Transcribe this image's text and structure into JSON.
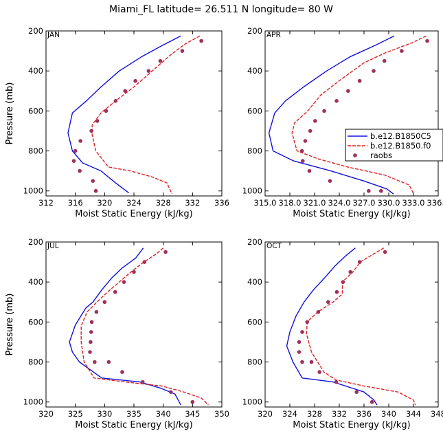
{
  "title": "Miami_FL   latitude= 26.511 N longitude= 80 W",
  "colors": {
    "model1": "#1010dd",
    "model2": "#dd2222",
    "raobs": "#a0305a",
    "axis": "#000000"
  },
  "legend": {
    "entries": [
      {
        "label": "b.e12.B1850C5",
        "style": "solid"
      },
      {
        "label": "b.e12.B1850.f0",
        "style": "dashed"
      },
      {
        "label": "raobs",
        "style": "dot"
      }
    ]
  },
  "chart_data": [
    {
      "type": "line",
      "panel": "JAN",
      "xlabel": "Moist Static Energy (kJ/kg)",
      "ylabel": "Pressure (mb)",
      "xlim": [
        312,
        336
      ],
      "ylim": [
        1025,
        200
      ],
      "xticks": [
        312,
        316,
        320,
        324,
        328,
        332,
        336
      ],
      "xtick_labels": [
        "312",
        "316",
        "320",
        "324",
        "328",
        "332",
        "336"
      ],
      "yticks": [
        200,
        400,
        600,
        800,
        1000
      ],
      "series": [
        {
          "name": "b.e12.B1850C5",
          "style": "solid",
          "x": [
            330.4,
            328.0,
            325.0,
            322.0,
            319.5,
            317.5,
            315.6,
            315.0,
            315.6,
            317.0,
            319.5,
            321.5,
            323.3
          ],
          "y": [
            225,
            270,
            330,
            400,
            480,
            550,
            610,
            710,
            800,
            860,
            900,
            960,
            1010
          ]
        },
        {
          "name": "b.e12.B1850.f0",
          "style": "dashed",
          "x": [
            333.0,
            331.0,
            329.0,
            326.5,
            324.0,
            321.5,
            319.5,
            318.3,
            318.3,
            318.8,
            320.5,
            323.5,
            326.5,
            328.5,
            329.2
          ],
          "y": [
            225,
            265,
            320,
            400,
            480,
            550,
            610,
            670,
            720,
            800,
            880,
            900,
            930,
            960,
            1015
          ]
        }
      ],
      "scatter": {
        "name": "raobs",
        "x": [
          333.2,
          330.6,
          327.6,
          326.0,
          324.2,
          322.8,
          321.5,
          320.2,
          319.0,
          318.2,
          316.7,
          316.0,
          315.8,
          316.6,
          318.4,
          318.8
        ],
        "y": [
          250,
          300,
          350,
          400,
          450,
          500,
          550,
          600,
          650,
          700,
          750,
          800,
          850,
          900,
          950,
          1000
        ]
      }
    },
    {
      "type": "line",
      "panel": "APR",
      "xlabel": "Moist Static Energy (kJ/kg)",
      "ylabel": "Pressure (mb)",
      "xlim": [
        315.03,
        336.03
      ],
      "ylim": [
        1025,
        200
      ],
      "xticks": [
        315.03,
        318.03,
        321.03,
        324.03,
        327.03,
        330.03,
        333.03,
        336.03
      ],
      "xtick_labels": [
        "315.0",
        "318.0",
        "321.0",
        "324.0",
        "327.0",
        "330.0",
        "333.0",
        "336.0"
      ],
      "yticks": [
        200,
        400,
        600,
        800,
        1000
      ],
      "series": [
        {
          "name": "b.e12.B1850C5",
          "style": "solid",
          "x": [
            330.7,
            328.5,
            325.3,
            322.5,
            319.7,
            317.5,
            316.2,
            315.5,
            316.0,
            318.5,
            323.0,
            327.0,
            329.8,
            330.6
          ],
          "y": [
            225,
            270,
            330,
            400,
            480,
            550,
            610,
            710,
            800,
            850,
            900,
            950,
            990,
            1015
          ]
        },
        {
          "name": "b.e12.B1850.f0",
          "style": "dashed",
          "x": [
            334.6,
            332.8,
            329.6,
            327.0,
            324.0,
            321.8,
            320.2,
            318.6,
            318.3,
            318.9,
            321.5,
            325.0,
            329.5,
            332.5,
            333.0
          ],
          "y": [
            225,
            260,
            310,
            360,
            450,
            520,
            600,
            660,
            710,
            800,
            840,
            880,
            920,
            970,
            1010
          ]
        }
      ],
      "scatter": {
        "name": "raobs",
        "x": [
          334.7,
          331.6,
          329.5,
          328.2,
          326.5,
          325.1,
          323.7,
          322.2,
          321.1,
          320.5,
          319.9,
          319.5,
          319.6,
          320.4,
          322.9,
          327.6,
          329.1
        ],
        "y": [
          250,
          300,
          350,
          400,
          450,
          500,
          550,
          600,
          650,
          700,
          750,
          800,
          850,
          900,
          950,
          1000,
          1000
        ]
      }
    },
    {
      "type": "line",
      "panel": "JUL",
      "xlabel": "Moist Static Energy (kJ/kg)",
      "ylabel": "Pressure (mb)",
      "xlim": [
        320,
        350
      ],
      "ylim": [
        1025,
        200
      ],
      "xticks": [
        320,
        325,
        330,
        335,
        340,
        345,
        350
      ],
      "xtick_labels": [
        "320",
        "325",
        "330",
        "335",
        "340",
        "345",
        "350"
      ],
      "yticks": [
        200,
        400,
        600,
        800,
        1000
      ],
      "series": [
        {
          "name": "b.e12.B1850C5",
          "style": "solid",
          "x": [
            336.6,
            335.3,
            333.0,
            331.2,
            329.5,
            328.0,
            326.8,
            325.0,
            324.0,
            324.5,
            325.7,
            329.5,
            336.0,
            339.5,
            342.0,
            343.0
          ],
          "y": [
            230,
            280,
            330,
            380,
            440,
            500,
            530,
            615,
            700,
            750,
            800,
            880,
            900,
            930,
            960,
            1015
          ]
        },
        {
          "name": "b.e12.B1850.f0",
          "style": "dashed",
          "x": [
            340.0,
            338.8,
            336.7,
            334.5,
            332.5,
            330.5,
            328.7,
            327.0,
            326.0,
            326.0,
            326.5,
            328.2,
            333.5,
            339.8,
            343.5,
            346.5,
            347.7
          ],
          "y": [
            230,
            260,
            300,
            350,
            400,
            450,
            500,
            550,
            620,
            700,
            800,
            880,
            900,
            920,
            950,
            980,
            1015
          ]
        }
      ],
      "scatter": {
        "name": "raobs",
        "x": [
          340.4,
          336.8,
          335.0,
          333.3,
          331.8,
          330.0,
          328.6,
          327.8,
          327.7,
          327.6,
          327.5,
          328.3,
          330.7,
          333.0,
          336.5,
          341.3,
          345.0
        ],
        "y": [
          250,
          300,
          350,
          400,
          450,
          500,
          550,
          600,
          650,
          700,
          750,
          800,
          800,
          850,
          900,
          950,
          1000
        ]
      }
    },
    {
      "type": "line",
      "panel": "OCT",
      "xlabel": "Moist Static Energy (kJ/kg)",
      "ylabel": "Pressure (mb)",
      "xlim": [
        320,
        348
      ],
      "ylim": [
        1025,
        200
      ],
      "xticks": [
        320,
        324,
        328,
        332,
        336,
        340,
        344,
        348
      ],
      "xtick_labels": [
        "320",
        "324",
        "328",
        "332",
        "336",
        "340",
        "344",
        "348"
      ],
      "yticks": [
        200,
        400,
        600,
        800,
        1000
      ],
      "series": [
        {
          "name": "b.e12.B1850C5",
          "style": "solid",
          "x": [
            334.6,
            333.0,
            331.3,
            329.6,
            327.8,
            326.3,
            325.0,
            324.0,
            323.5,
            324.5,
            326.0,
            331.0,
            336.0,
            337.6,
            338.1
          ],
          "y": [
            230,
            270,
            320,
            380,
            440,
            500,
            570,
            650,
            720,
            800,
            880,
            900,
            950,
            990,
            1015
          ]
        },
        {
          "name": "b.e12.B1850.f0",
          "style": "dashed",
          "x": [
            339.2,
            337.0,
            335.4,
            334.2,
            332.5,
            332.5,
            331.0,
            328.5,
            326.8,
            326.7,
            327.5,
            329.5,
            331.5,
            336.0,
            341.5,
            344.0,
            344.3
          ],
          "y": [
            230,
            270,
            300,
            350,
            400,
            460,
            500,
            550,
            600,
            660,
            750,
            850,
            890,
            920,
            950,
            990,
            1015
          ]
        }
      ],
      "scatter": {
        "name": "raobs",
        "x": [
          339.4,
          335.3,
          333.8,
          332.6,
          331.6,
          330.2,
          328.6,
          326.8,
          326.0,
          325.5,
          325.5,
          326.0,
          327.5,
          328.8,
          331.5,
          334.8,
          337.3
        ],
        "y": [
          250,
          300,
          350,
          400,
          450,
          500,
          550,
          600,
          650,
          700,
          750,
          800,
          800,
          850,
          900,
          950,
          1000
        ]
      }
    }
  ]
}
